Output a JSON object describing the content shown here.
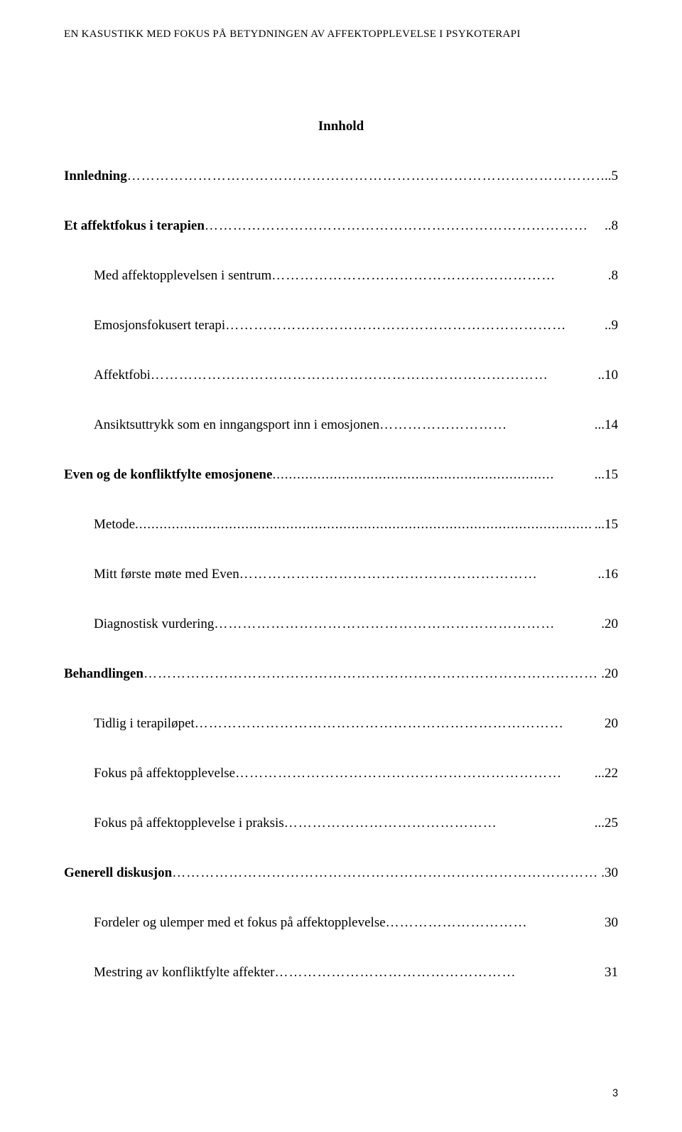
{
  "header": "EN KASUSTIKK MED FOKUS PÅ BETYDNINGEN AV AFFEKTOPPLEVELSE I PSYKOTERAPI",
  "title": "Innhold",
  "toc": [
    {
      "label": "Innledning",
      "page": "..5",
      "bold": true,
      "level": 0,
      "leader": "…………………………………………………………………………………………"
    },
    {
      "label": "Et affektfokus i terapien",
      "page": "..8",
      "bold": true,
      "level": 0,
      "leader": "………………………………………………………………………"
    },
    {
      "label": "Med affektopplevelsen i sentrum",
      "page": ".8",
      "bold": false,
      "level": 1,
      "leader": "……………………………………………………"
    },
    {
      "label": "Emosjonsfokusert terapi",
      "page": "..9",
      "bold": false,
      "level": 1,
      "leader": "………………………………………………………………"
    },
    {
      "label": "Affektfobi",
      "page": "..10",
      "bold": false,
      "level": 1,
      "leader": "…………………………………………………………………………"
    },
    {
      "label": "Ansiktsuttrykk som en inngangsport inn i emosjonen",
      "page": "...14",
      "bold": false,
      "level": 1,
      "leader": "………………………"
    },
    {
      "label": "Even og de konfliktfylte emosjonene",
      "page": "...15",
      "bold": true,
      "level": 0,
      "leader": "....................................................................."
    },
    {
      "label": "Metode",
      "page": "...15",
      "bold": false,
      "level": 1,
      "leader": "...................................................................................................................."
    },
    {
      "label": "Mitt første møte med Even",
      "page": "..16",
      "bold": false,
      "level": 1,
      "leader": "………………………………………………………"
    },
    {
      "label": "Diagnostisk vurdering",
      "page": ".20",
      "bold": false,
      "level": 1,
      "leader": "………………………………………………………………"
    },
    {
      "label": "Behandlingen",
      "page": ".20",
      "bold": true,
      "level": 0,
      "leader": "………………………………………………………………………………………"
    },
    {
      "label": "Tidlig i terapiløpet",
      "page": "20",
      "bold": false,
      "level": 1,
      "leader": "……………………………………………………………………"
    },
    {
      "label": "Fokus på affektopplevelse",
      "page": "...22",
      "bold": false,
      "level": 1,
      "leader": "……………………………………………………………"
    },
    {
      "label": "Fokus på affektopplevelse i praksis",
      "page": "...25",
      "bold": false,
      "level": 1,
      "leader": "………………………………………"
    },
    {
      "label": "Generell diskusjon",
      "page": ".30",
      "bold": true,
      "level": 0,
      "leader": "…………………………………………………………………………………"
    },
    {
      "label": "Fordeler og ulemper med et fokus på affektopplevelse",
      "page": "30",
      "bold": false,
      "level": 1,
      "leader": "…………………………"
    },
    {
      "label": "Mestring av konfliktfylte affekter",
      "page": "31",
      "bold": false,
      "level": 1,
      "leader": "……………………………………………"
    }
  ],
  "page_number": "3"
}
